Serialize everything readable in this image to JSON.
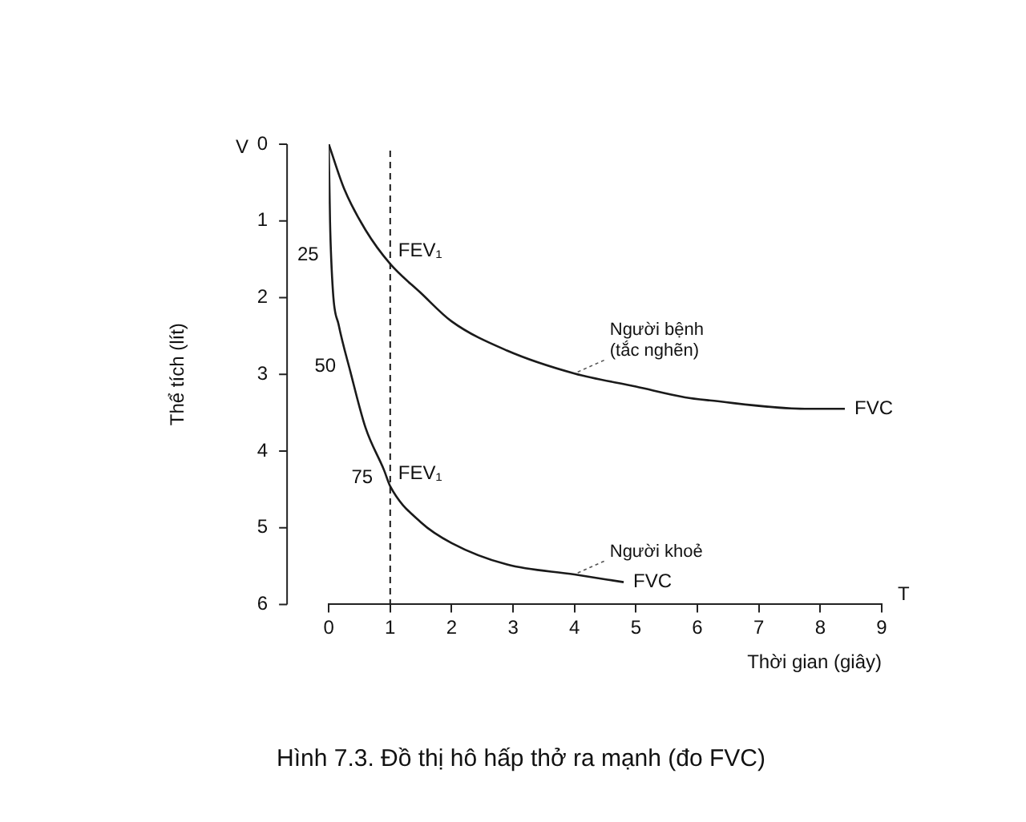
{
  "chart_data": {
    "type": "line",
    "title": "Hình 7.3. Đồ thị hô hấp thở ra mạnh (đo FVC)",
    "xlabel": "Thời gian (giây)",
    "ylabel": "Thể tích (lít)",
    "xlim": [
      0,
      9
    ],
    "xticks": [
      0,
      1,
      2,
      3,
      4,
      5,
      6,
      7,
      8,
      9
    ],
    "ylim": [
      6,
      0
    ],
    "yticks": [
      0,
      1,
      2,
      3,
      4,
      5,
      6
    ],
    "grid": false,
    "legend": false,
    "marker": "none",
    "line_style": "solid",
    "series": [
      {
        "name": "Người bệnh\n(tắc nghẽn)",
        "color": "#1a1a1a",
        "x": [
          0,
          0.25,
          0.6,
          1,
          1.5,
          2,
          2.9,
          4,
          5,
          5.8,
          6.2,
          7.75,
          8.4
        ],
        "values": [
          0,
          0.58,
          1.12,
          1.56,
          1.94,
          2.31,
          2.69,
          2.99,
          3.16,
          3.3,
          3.34,
          3.45,
          3.45
        ]
      },
      {
        "name": "Người khoẻ",
        "color": "#1a1a1a",
        "x": [
          0,
          0.02,
          0.07,
          0.16,
          0.35,
          0.6,
          0.9,
          1,
          1.5,
          2,
          2.9,
          4,
          4.8
        ],
        "values": [
          0,
          0.99,
          1.94,
          2.35,
          2.96,
          3.7,
          4.25,
          4.46,
          4.93,
          5.2,
          5.48,
          5.61,
          5.71
        ]
      }
    ],
    "ref_lines": [
      {
        "axis": "x",
        "value": 1,
        "color": "#1a1a1a",
        "line_style": "dashed"
      }
    ],
    "annotations": [
      "V",
      "T",
      {
        "text": "FEV₁",
        "x": 1,
        "y": 1.56
      },
      {
        "text": "FEV₁",
        "x": 1,
        "y": 4.46
      },
      {
        "text": "FVC",
        "x": 8.4,
        "y": 3.45
      },
      {
        "text": "FVC",
        "x": 4.8,
        "y": 5.71
      },
      {
        "text": "25",
        "x": 0.02,
        "y": 1.45
      },
      {
        "text": "50",
        "x": 0.3,
        "y": 2.9
      },
      {
        "text": "75",
        "x": 0.9,
        "y": 4.35
      }
    ]
  }
}
